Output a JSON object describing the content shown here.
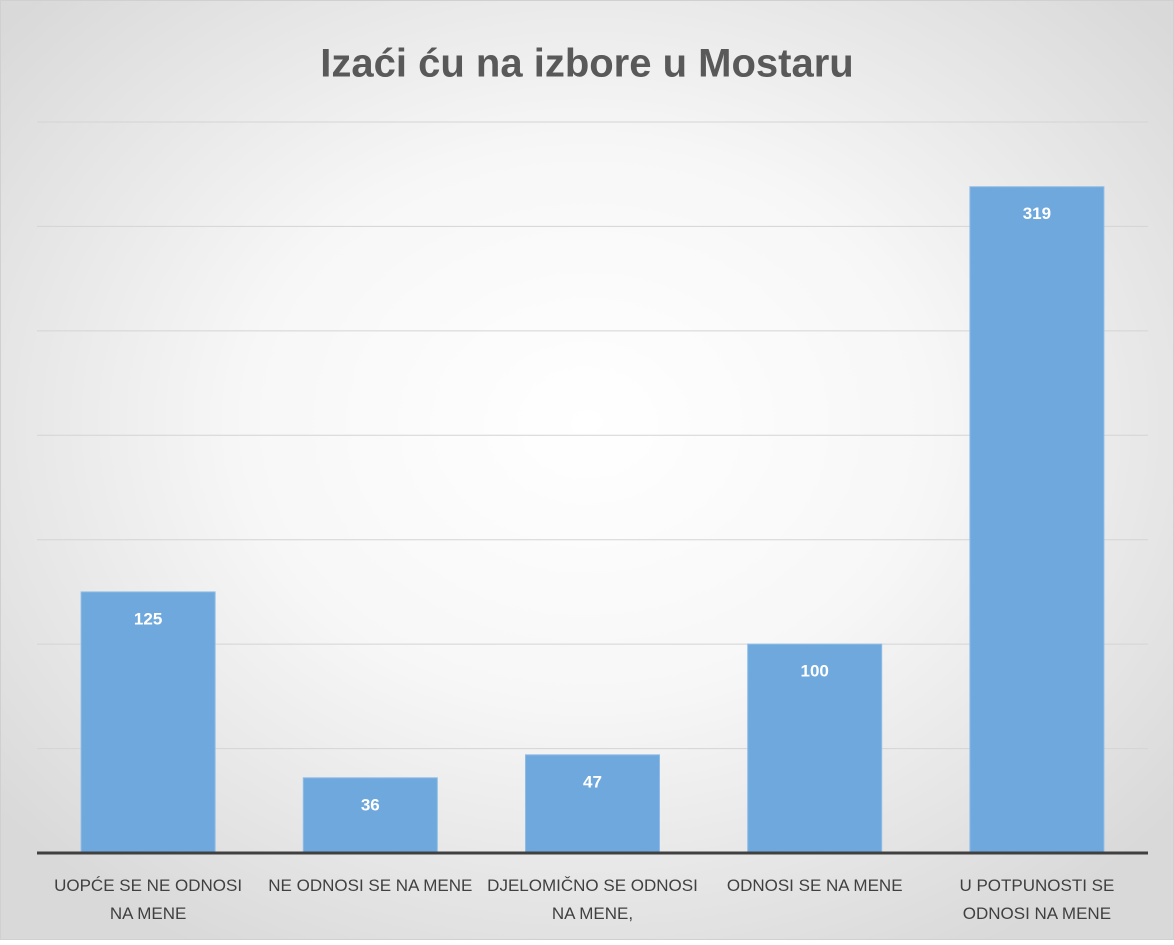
{
  "chart_data": {
    "type": "bar",
    "title": "Izaći ću na izbore u Mostaru",
    "categories": [
      "UOPĆE SE NE ODNOSI NA MENE",
      "NE ODNOSI SE NA MENE",
      "DJELOMIČNO SE ODNOSI NA MENE,",
      "ODNOSI SE NA MENE",
      "U POTPUNOSTI SE ODNOSI NA MENE"
    ],
    "values": [
      125,
      36,
      47,
      100,
      319
    ],
    "color": "#6fa8dc",
    "ylim": [
      0,
      350
    ],
    "yticks": [
      0,
      50,
      100,
      150,
      200,
      250,
      300,
      350
    ],
    "grid": true
  }
}
